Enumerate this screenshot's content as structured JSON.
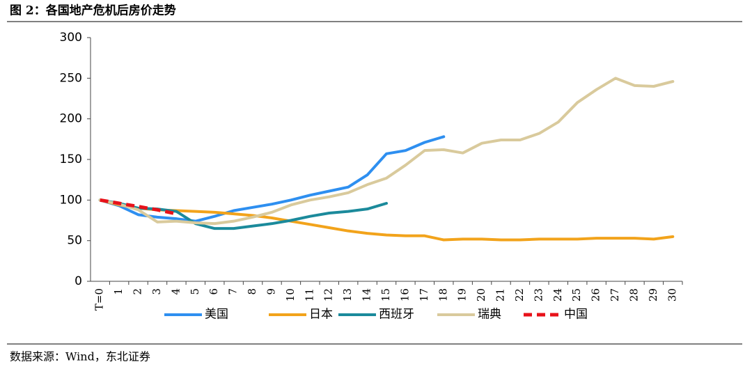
{
  "chart_data": {
    "type": "line",
    "title": "图 2：各国地产危机后房价走势",
    "source": "数据来源：Wind，东北证券",
    "categories": [
      "T=0",
      "1",
      "2",
      "3",
      "4",
      "5",
      "6",
      "7",
      "8",
      "9",
      "10",
      "11",
      "12",
      "13",
      "14",
      "15",
      "16",
      "17",
      "18",
      "19",
      "20",
      "21",
      "22",
      "23",
      "24",
      "25",
      "26",
      "27",
      "28",
      "29",
      "30"
    ],
    "ylim": [
      0,
      300
    ],
    "yticks": [
      0,
      50,
      100,
      150,
      200,
      250,
      300
    ],
    "series": [
      {
        "name": "美国",
        "color": "#2e8ff0",
        "values": [
          100,
          93,
          82,
          79,
          77,
          74,
          80,
          87,
          91,
          95,
          100,
          106,
          111,
          116,
          131,
          157,
          161,
          171,
          178,
          null,
          null,
          null,
          null,
          null,
          null,
          null,
          null,
          null,
          null,
          null,
          null
        ]
      },
      {
        "name": "日本",
        "color": "#f2a31b",
        "values": [
          100,
          94,
          90,
          88,
          87,
          86,
          85,
          83,
          81,
          78,
          74,
          70,
          66,
          62,
          59,
          57,
          56,
          56,
          51,
          52,
          52,
          51,
          51,
          52,
          52,
          52,
          53,
          53,
          53,
          52,
          55
        ]
      },
      {
        "name": "西班牙",
        "color": "#1b8a9b",
        "values": [
          100,
          96,
          90,
          89,
          86,
          71,
          65,
          65,
          68,
          71,
          75,
          80,
          84,
          86,
          89,
          96,
          null,
          null,
          null,
          null,
          null,
          null,
          null,
          null,
          null,
          null,
          null,
          null,
          null,
          null,
          null
        ]
      },
      {
        "name": "瑞典",
        "color": "#d9ca9c",
        "values": [
          100,
          95,
          88,
          73,
          74,
          72,
          71,
          74,
          79,
          85,
          94,
          100,
          104,
          109,
          119,
          127,
          143,
          161,
          162,
          158,
          170,
          174,
          174,
          182,
          196,
          220,
          236,
          250,
          241,
          240,
          246
        ]
      },
      {
        "name": "中国",
        "color": "#e8121a",
        "dashed": true,
        "values": [
          100,
          96,
          92,
          88,
          83,
          null,
          null,
          null,
          null,
          null,
          null,
          null,
          null,
          null,
          null,
          null,
          null,
          null,
          null,
          null,
          null,
          null,
          null,
          null,
          null,
          null,
          null,
          null,
          null,
          null,
          null
        ]
      }
    ]
  }
}
